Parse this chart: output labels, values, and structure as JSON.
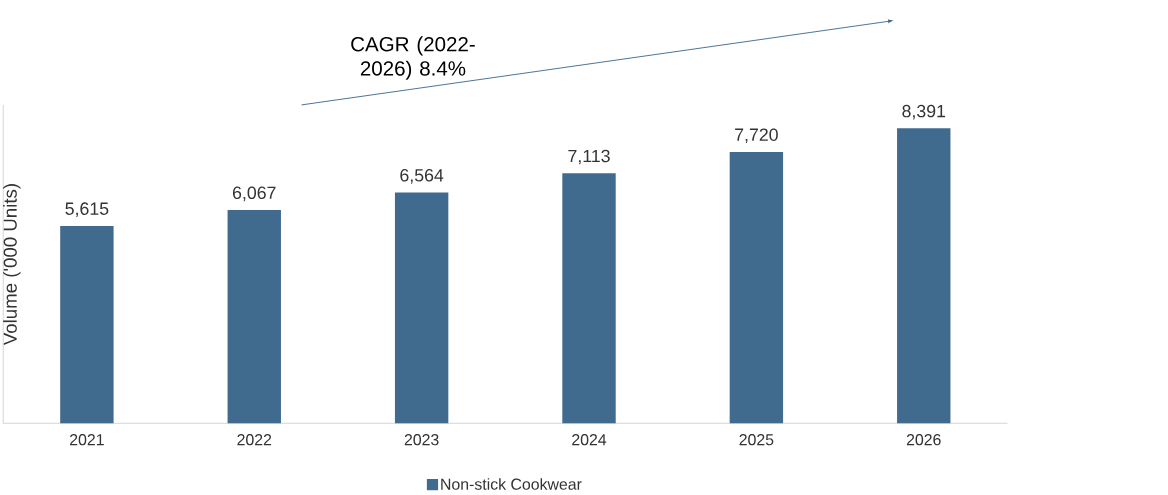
{
  "chart_data": {
    "type": "bar",
    "ylabel": "Volume ('000 Units)",
    "categories": [
      "2021",
      "2022",
      "2023",
      "2024",
      "2025",
      "2026"
    ],
    "series": [
      {
        "name": "Non-stick Cookwear",
        "color": "#416b8e",
        "values": [
          5615,
          6067,
          6564,
          7113,
          7720,
          8391
        ],
        "value_labels": [
          "5,615",
          "6,067",
          "6,564",
          "7,113",
          "7,720",
          "8,391"
        ]
      }
    ],
    "annotations": [
      "CAGR (2022-2026) 8.4%"
    ],
    "legend": "bottom"
  }
}
